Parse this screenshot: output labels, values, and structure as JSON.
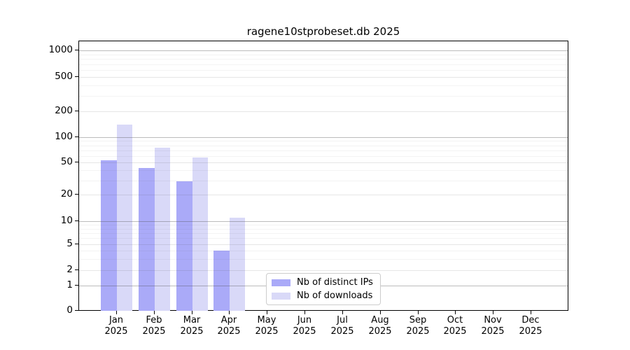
{
  "chart_data": {
    "type": "bar",
    "title": "ragene10stprobeset.db 2025",
    "categories": [
      {
        "month": "Jan",
        "year": "2025"
      },
      {
        "month": "Feb",
        "year": "2025"
      },
      {
        "month": "Mar",
        "year": "2025"
      },
      {
        "month": "Apr",
        "year": "2025"
      },
      {
        "month": "May",
        "year": "2025"
      },
      {
        "month": "Jun",
        "year": "2025"
      },
      {
        "month": "Jul",
        "year": "2025"
      },
      {
        "month": "Aug",
        "year": "2025"
      },
      {
        "month": "Sep",
        "year": "2025"
      },
      {
        "month": "Oct",
        "year": "2025"
      },
      {
        "month": "Nov",
        "year": "2025"
      },
      {
        "month": "Dec",
        "year": "2025"
      }
    ],
    "series": [
      {
        "name": "Nb of distinct IPs",
        "color": "#aaaaf8",
        "values": [
          53,
          43,
          29,
          4,
          0,
          0,
          0,
          0,
          0,
          0,
          0,
          0
        ]
      },
      {
        "name": "Nb of downloads",
        "color": "#d9d9f8",
        "values": [
          140,
          75,
          57,
          11,
          0,
          0,
          0,
          0,
          0,
          0,
          0,
          0
        ]
      }
    ],
    "y_axis": {
      "scale": "log-like (symlog)",
      "ticks": [
        0,
        1,
        2,
        5,
        10,
        20,
        50,
        100,
        200,
        500,
        1000
      ],
      "ylim": [
        0,
        1300
      ],
      "grid": "on"
    },
    "legend": {
      "position": "bottom-center",
      "entries": [
        "Nb of distinct IPs",
        "Nb of downloads"
      ]
    }
  }
}
